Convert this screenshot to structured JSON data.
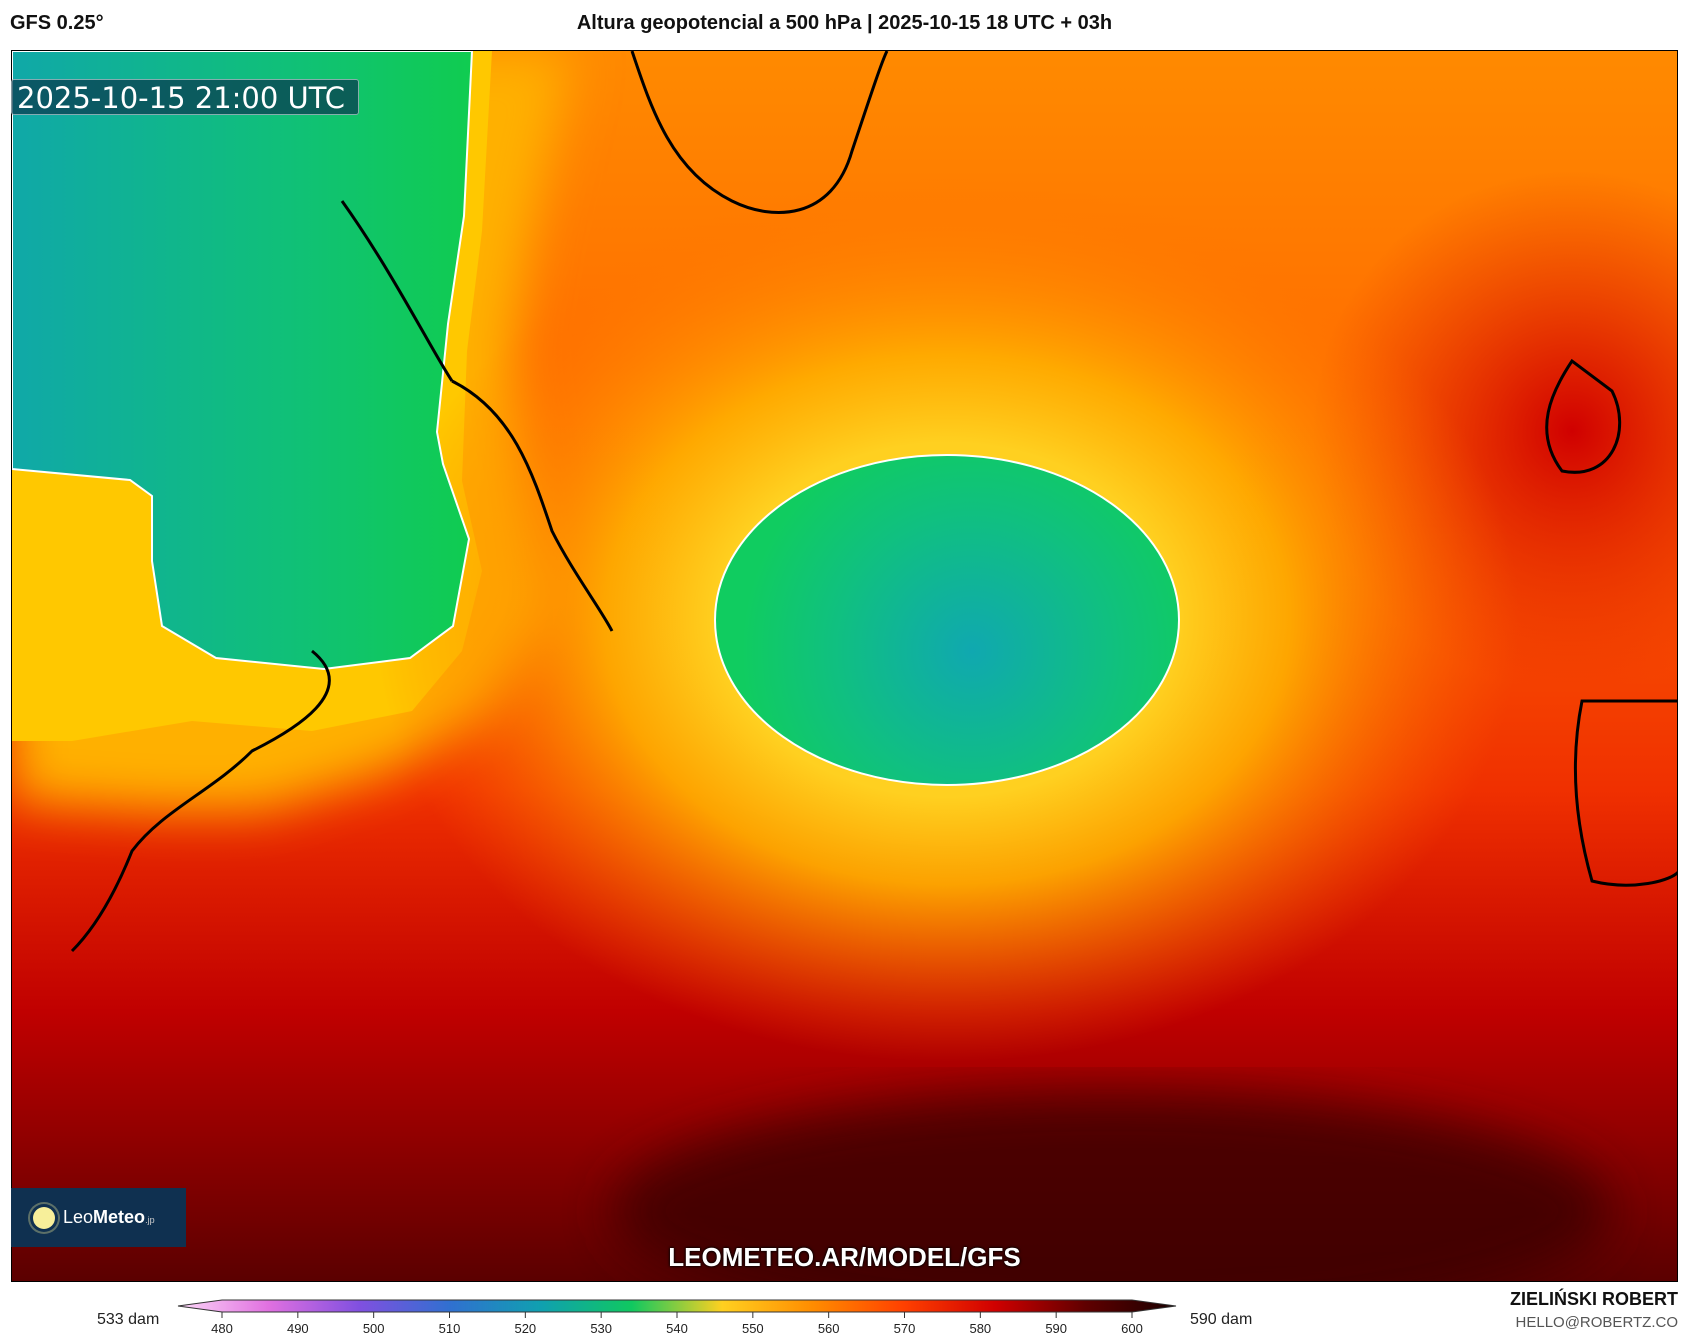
{
  "header": {
    "model": "GFS 0.25°",
    "title": "Altura geopotencial a 500 hPa | 2025-10-15 18 UTC + 03h"
  },
  "map": {
    "valid_time": "2025-10-15 21:00 UTC",
    "watermark": "LEOMETEO.AR/MODEL/GFS",
    "field": "500 hPa geopotential height",
    "colors": {
      "low": "#0fa0a0",
      "green": "#10c860",
      "yellow": "#ffd020",
      "orange": "#ff8c00",
      "red": "#e01010",
      "darkred": "#600000"
    }
  },
  "logo": {
    "name_light": "Leo",
    "name_bold": "Meteo",
    "suffix": ".jp"
  },
  "colorbar": {
    "min_label": "533 dam",
    "max_label": "590 dam",
    "ticks": [
      "480",
      "490",
      "500",
      "510",
      "520",
      "530",
      "540",
      "550",
      "560",
      "570",
      "580",
      "590",
      "600"
    ],
    "stops": [
      "#fcd8f8",
      "#e070e0",
      "#8050e0",
      "#3070d0",
      "#10a0b0",
      "#10c860",
      "#ffd020",
      "#ff8c00",
      "#ff4000",
      "#d00000",
      "#600000",
      "#180000"
    ]
  },
  "credits": {
    "author": "ZIELIŃSKI ROBERT",
    "email": "HELLO@ROBERTZ.CO"
  }
}
